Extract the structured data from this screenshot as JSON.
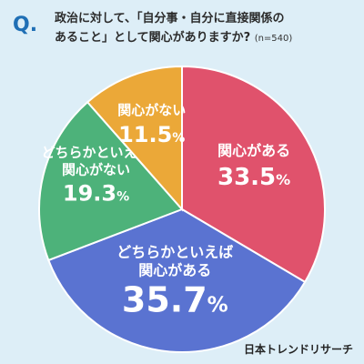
{
  "question": {
    "mark": "Q.",
    "line1": "政治に対して、「自分事・自分に直接関係の",
    "line2": "あること」として関心がありますか?",
    "sample": "(n=540)"
  },
  "logo": "日本トレンドリサーチ",
  "chart_data": {
    "type": "pie",
    "title": "政治に対して、「自分事・自分に直接関係のあること」として関心がありますか?",
    "slices": [
      {
        "label": "関心がある",
        "value": 33.5,
        "color": "#e0526c"
      },
      {
        "label": "どちらかといえば関心がある",
        "value": 35.7,
        "color": "#5a73d1"
      },
      {
        "label": "どちらかといえば関心がない",
        "value": 19.3,
        "color": "#4db27a"
      },
      {
        "label": "関心がない",
        "value": 11.5,
        "color": "#eba838"
      }
    ],
    "value_suffix": "%"
  }
}
